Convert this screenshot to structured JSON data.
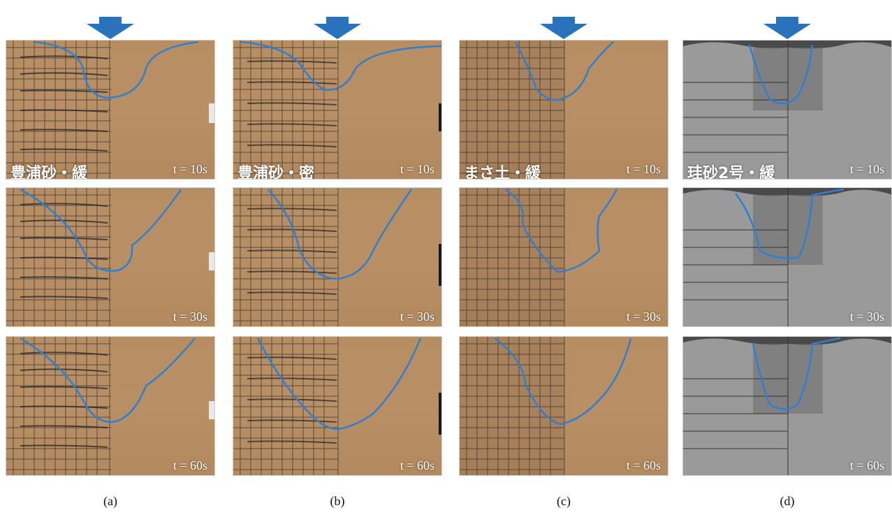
{
  "colors": {
    "arrow": "#2a72bc",
    "curve": "#2f7fd0",
    "sand": "#b78d62",
    "silica": "#9a9a9a"
  },
  "columns": [
    {
      "caption": "(a)",
      "material": "sand",
      "panels": [
        {
          "label": "豊浦砂・緩",
          "time": "t = 10s"
        },
        {
          "label": "",
          "time": "t = 30s"
        },
        {
          "label": "",
          "time": "t = 60s"
        }
      ]
    },
    {
      "caption": "(b)",
      "material": "sand",
      "panels": [
        {
          "label": "豊浦砂・密",
          "time": "t = 10s"
        },
        {
          "label": "",
          "time": "t = 30s"
        },
        {
          "label": "",
          "time": "t = 60s"
        }
      ]
    },
    {
      "caption": "(c)",
      "material": "sand",
      "panels": [
        {
          "label": "まさ土・緩",
          "time": "t = 10s"
        },
        {
          "label": "",
          "time": "t = 30s"
        },
        {
          "label": "",
          "time": "t = 60s"
        }
      ]
    },
    {
      "caption": "(d)",
      "material": "silica",
      "panels": [
        {
          "label": "珪砂2号・緩",
          "time": "t = 10s"
        },
        {
          "label": "",
          "time": "t = 30s"
        },
        {
          "label": "",
          "time": "t = 60s"
        }
      ]
    }
  ]
}
